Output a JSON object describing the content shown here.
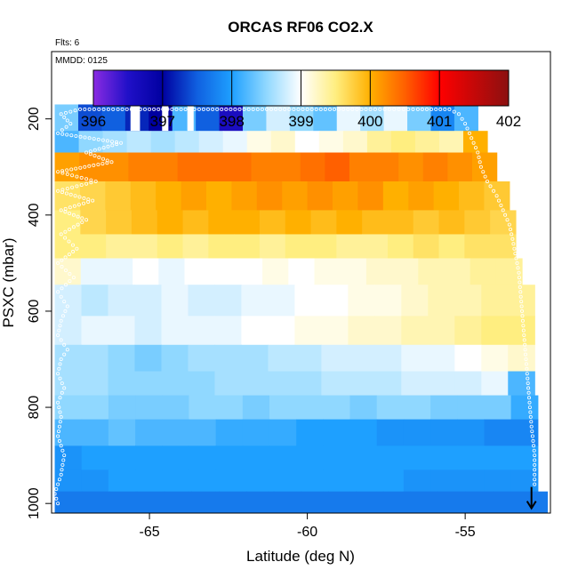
{
  "chart_data": {
    "type": "heatmap",
    "title": "ORCAS RF06 CO2.X",
    "annotations": {
      "flights": "Flts: 6",
      "date": "MMDD: 0125"
    },
    "xlabel": "Latitude (deg N)",
    "ylabel": "PSXC (mbar)",
    "xlim": [
      -68.1,
      -52.3
    ],
    "ylim": [
      1020,
      60
    ],
    "y_reversed": true,
    "x_ticks": [
      -65,
      -60,
      -55
    ],
    "x_tick_labels": [
      "-65",
      "-60",
      "-55"
    ],
    "y_ticks": [
      200,
      400,
      600,
      800,
      1000
    ],
    "y_tick_labels": [
      "200",
      "400",
      "600",
      "800",
      "1000"
    ],
    "colorbar": {
      "min": 396,
      "max": 402,
      "ticks": [
        396,
        397,
        398,
        399,
        400,
        401,
        402
      ],
      "tick_labels": [
        "396",
        "397",
        "398",
        "399",
        "400",
        "401",
        "402"
      ],
      "stops": [
        {
          "value": 396.0,
          "color": "#8a2be2"
        },
        {
          "value": 396.5,
          "color": "#2010c8"
        },
        {
          "value": 397.0,
          "color": "#0000a0"
        },
        {
          "value": 397.5,
          "color": "#1060e0"
        },
        {
          "value": 398.0,
          "color": "#1ea0ff"
        },
        {
          "value": 398.5,
          "color": "#90d8ff"
        },
        {
          "value": 399.0,
          "color": "#ffffff"
        },
        {
          "value": 399.5,
          "color": "#ffee80"
        },
        {
          "value": 400.0,
          "color": "#ffb000"
        },
        {
          "value": 400.5,
          "color": "#ff6000"
        },
        {
          "value": 401.0,
          "color": "#ff0000"
        },
        {
          "value": 402.0,
          "color": "#8b1010"
        }
      ]
    },
    "layers": [
      {
        "p_top": 170,
        "p_bot": 225,
        "lat_min": -68.0,
        "lat_max": -54.6,
        "values": [
          398.4,
          397.4,
          397.5,
          397.2,
          397.0,
          398.2,
          397.5,
          396.6,
          398.4,
          398.8,
          398.5,
          398.3,
          398.9,
          398.6,
          398.9,
          398.4,
          397.8,
          398.2
        ]
      },
      {
        "p_top": 225,
        "p_bot": 270,
        "lat_min": -68.0,
        "lat_max": -54.3,
        "values": [
          398.2,
          398.5,
          398.6,
          398.7,
          398.6,
          398.7,
          398.8,
          398.9,
          399.1,
          399.2,
          399.0,
          399.1,
          399.2,
          399.4,
          399.5,
          399.4,
          399.3,
          400.0
        ]
      },
      {
        "p_top": 270,
        "p_bot": 330,
        "lat_min": -68.0,
        "lat_max": -54.0,
        "values": [
          400.1,
          400.2,
          400.2,
          400.3,
          400.3,
          400.4,
          400.4,
          400.4,
          400.3,
          400.3,
          400.4,
          400.5,
          400.3,
          400.3,
          400.2,
          400.3,
          400.2,
          400.1
        ]
      },
      {
        "p_top": 330,
        "p_bot": 390,
        "lat_min": -68.0,
        "lat_max": -53.6,
        "values": [
          399.6,
          399.7,
          399.8,
          399.9,
          400.0,
          400.1,
          400.0,
          400.1,
          400.2,
          400.1,
          400.2,
          400.1,
          400.2,
          400.0,
          400.1,
          400.0,
          399.9,
          399.8
        ]
      },
      {
        "p_top": 390,
        "p_bot": 440,
        "lat_min": -68.0,
        "lat_max": -53.4,
        "values": [
          399.5,
          399.7,
          399.8,
          399.9,
          400.0,
          399.9,
          400.0,
          400.0,
          399.9,
          400.0,
          399.9,
          400.0,
          399.9,
          399.9,
          399.8,
          399.9,
          399.8,
          399.7
        ]
      },
      {
        "p_top": 440,
        "p_bot": 490,
        "lat_min": -68.0,
        "lat_max": -53.4,
        "values": [
          399.5,
          399.5,
          399.4,
          399.4,
          399.5,
          399.4,
          399.5,
          399.5,
          399.4,
          399.5,
          399.5,
          399.4,
          399.4,
          399.5,
          399.6,
          399.5,
          399.6,
          399.6
        ]
      },
      {
        "p_top": 490,
        "p_bot": 545,
        "lat_min": -68.0,
        "lat_max": -53.2,
        "values": [
          399.2,
          398.9,
          398.9,
          399.0,
          398.9,
          399.0,
          399.0,
          399.0,
          399.1,
          399.0,
          399.1,
          399.1,
          399.2,
          399.2,
          399.3,
          399.3,
          399.4,
          399.4
        ]
      },
      {
        "p_top": 545,
        "p_bot": 610,
        "lat_min": -68.0,
        "lat_max": -52.8,
        "values": [
          398.8,
          398.7,
          398.8,
          398.8,
          398.9,
          398.8,
          398.8,
          398.9,
          398.9,
          399.0,
          399.0,
          399.1,
          399.1,
          399.2,
          399.3,
          399.3,
          399.4,
          399.4
        ]
      },
      {
        "p_top": 610,
        "p_bot": 670,
        "lat_min": -68.0,
        "lat_max": -52.8,
        "values": [
          398.8,
          398.9,
          398.9,
          398.8,
          398.9,
          398.9,
          398.9,
          399.0,
          399.0,
          399.1,
          399.1,
          399.2,
          399.2,
          399.3,
          399.3,
          399.4,
          399.5,
          399.5
        ]
      },
      {
        "p_top": 670,
        "p_bot": 725,
        "lat_min": -68.0,
        "lat_max": -52.8,
        "values": [
          398.6,
          398.6,
          398.5,
          398.4,
          398.5,
          398.6,
          398.6,
          398.6,
          398.7,
          398.7,
          398.8,
          398.8,
          398.8,
          398.9,
          398.9,
          399.0,
          399.1,
          399.2
        ]
      },
      {
        "p_top": 725,
        "p_bot": 775,
        "lat_min": -68.0,
        "lat_max": -52.8,
        "values": [
          398.6,
          398.6,
          398.5,
          398.5,
          398.5,
          398.5,
          398.6,
          398.6,
          398.6,
          398.6,
          398.7,
          398.7,
          398.7,
          398.8,
          398.8,
          398.8,
          398.9,
          398.2
        ]
      },
      {
        "p_top": 775,
        "p_bot": 825,
        "lat_min": -68.0,
        "lat_max": -52.7,
        "values": [
          398.5,
          398.5,
          398.4,
          398.4,
          398.4,
          398.5,
          398.5,
          398.4,
          398.5,
          398.5,
          398.5,
          398.4,
          398.5,
          398.5,
          398.4,
          398.4,
          398.4,
          398.1
        ]
      },
      {
        "p_top": 825,
        "p_bot": 880,
        "lat_min": -68.0,
        "lat_max": -52.7,
        "values": [
          398.2,
          398.2,
          398.3,
          398.2,
          398.2,
          398.2,
          398.1,
          398.1,
          398.1,
          398.0,
          398.0,
          398.0,
          397.9,
          397.9,
          397.9,
          397.9,
          397.8,
          397.8
        ]
      },
      {
        "p_top": 880,
        "p_bot": 930,
        "lat_min": -68.0,
        "lat_max": -52.7,
        "values": [
          397.9,
          398.0,
          398.0,
          398.0,
          398.0,
          398.0,
          398.0,
          398.0,
          398.0,
          398.0,
          398.0,
          398.0,
          398.0,
          398.0,
          398.0,
          398.0,
          398.0,
          398.0
        ]
      },
      {
        "p_top": 930,
        "p_bot": 975,
        "lat_min": -68.0,
        "lat_max": -52.7,
        "values": [
          397.9,
          397.9,
          398.0,
          398.0,
          398.0,
          398.0,
          398.0,
          398.0,
          398.0,
          398.0,
          398.0,
          398.0,
          398.0,
          397.9,
          397.9,
          397.9,
          397.9,
          397.9
        ]
      },
      {
        "p_top": 975,
        "p_bot": 1020,
        "lat_min": -68.0,
        "lat_max": -52.4,
        "values": [
          397.7,
          397.7,
          397.7,
          397.7,
          397.7,
          397.7,
          397.7,
          397.7,
          397.7,
          397.7,
          397.7,
          397.7,
          397.7,
          397.7,
          397.7,
          397.7,
          397.7,
          397.7
        ]
      }
    ],
    "gaps": [
      {
        "lat_from": -65.6,
        "lat_to": -65.3,
        "p_top": 170,
        "p_bot": 225
      },
      {
        "lat_from": -64.6,
        "lat_to": -64.4,
        "p_top": 170,
        "p_bot": 225
      },
      {
        "lat_from": -63.8,
        "lat_to": -63.6,
        "p_top": 170,
        "p_bot": 225
      }
    ],
    "flight_track": [
      [
        -67.9,
        1000
      ],
      [
        -68.0,
        980
      ],
      [
        -67.8,
        940
      ],
      [
        -67.7,
        900
      ],
      [
        -67.9,
        860
      ],
      [
        -67.8,
        820
      ],
      [
        -67.9,
        790
      ],
      [
        -67.7,
        760
      ],
      [
        -67.9,
        730
      ],
      [
        -67.8,
        700
      ],
      [
        -67.6,
        680
      ],
      [
        -67.9,
        650
      ],
      [
        -67.8,
        620
      ],
      [
        -67.6,
        590
      ],
      [
        -67.9,
        560
      ],
      [
        -67.4,
        530
      ],
      [
        -67.9,
        500
      ],
      [
        -67.3,
        470
      ],
      [
        -67.8,
        440
      ],
      [
        -67.0,
        410
      ],
      [
        -67.8,
        390
      ],
      [
        -66.8,
        370
      ],
      [
        -67.9,
        350
      ],
      [
        -66.7,
        330
      ],
      [
        -67.9,
        310
      ],
      [
        -66.2,
        290
      ],
      [
        -67.0,
        270
      ],
      [
        -65.9,
        250
      ],
      [
        -67.9,
        230
      ],
      [
        -67.5,
        210
      ],
      [
        -67.8,
        190
      ],
      [
        -67.2,
        180
      ],
      [
        -66.0,
        180
      ],
      [
        -64.0,
        180
      ],
      [
        -62.0,
        180
      ],
      [
        -60.0,
        180
      ],
      [
        -58.0,
        180
      ],
      [
        -56.5,
        180
      ],
      [
        -55.5,
        180
      ],
      [
        -55.2,
        190
      ],
      [
        -55.0,
        210
      ],
      [
        -54.8,
        240
      ],
      [
        -54.6,
        270
      ],
      [
        -54.5,
        300
      ],
      [
        -54.3,
        330
      ],
      [
        -54.0,
        360
      ],
      [
        -53.8,
        390
      ],
      [
        -53.6,
        420
      ],
      [
        -53.5,
        450
      ],
      [
        -53.3,
        520
      ],
      [
        -53.2,
        600
      ],
      [
        -53.1,
        680
      ],
      [
        -53.0,
        760
      ],
      [
        -52.9,
        840
      ],
      [
        -52.8,
        900
      ],
      [
        -52.8,
        960
      ]
    ],
    "end_marker": {
      "lat": -52.9,
      "p": 1010,
      "symbol": "arrow-down"
    }
  }
}
